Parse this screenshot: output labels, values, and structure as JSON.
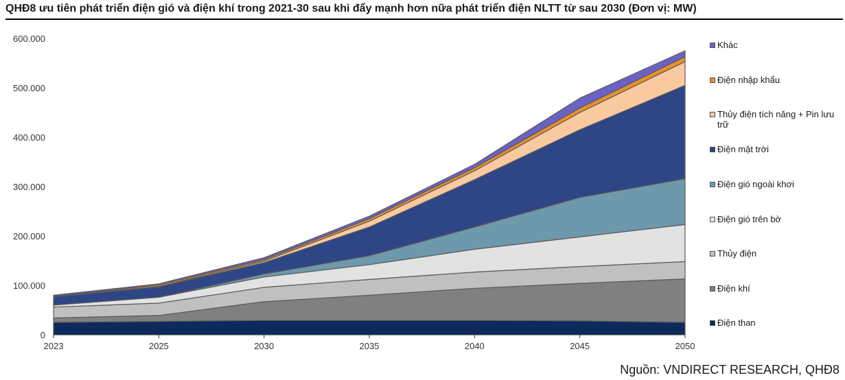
{
  "title": "QHĐ8 ưu tiên phát triển điện gió và điện khí trong 2021-30 sau khi đẩy mạnh hơn nữa phát triển điện NLTT từ sau 2030 (Đơn vị: MW)",
  "source": "Nguồn: VNDIRECT RESEARCH, QHĐ8",
  "chart_data": {
    "type": "area",
    "stacked": true,
    "x": [
      "2023",
      "2025",
      "2030",
      "2035",
      "2040",
      "2045",
      "2050"
    ],
    "ylim": [
      0,
      600000
    ],
    "yticks": [
      "0",
      "100.000",
      "200.000",
      "300.000",
      "400.000",
      "500.000",
      "600.000"
    ],
    "ytick_values": [
      0,
      100000,
      200000,
      300000,
      400000,
      500000,
      600000
    ],
    "legend_position": "right",
    "grid": false,
    "series": [
      {
        "name": "Điện than",
        "color": "#0d2a5c",
        "values": [
          25000,
          27000,
          29000,
          29000,
          29000,
          28000,
          25000
        ]
      },
      {
        "name": "Điện khí",
        "color": "#808080",
        "values": [
          9000,
          12000,
          38000,
          51000,
          65000,
          76000,
          88000
        ]
      },
      {
        "name": "Thủy điện",
        "color": "#c0c0c0",
        "values": [
          22000,
          25000,
          29000,
          32000,
          33000,
          34000,
          35000
        ]
      },
      {
        "name": "Điện gió trên bờ",
        "color": "#e2e2e2",
        "values": [
          4000,
          12000,
          21000,
          30000,
          46000,
          60000,
          75000
        ]
      },
      {
        "name": "Điện gió ngoài khơi",
        "color": "#6e98ac",
        "values": [
          0,
          0,
          6000,
          18000,
          45000,
          80000,
          93000
        ]
      },
      {
        "name": "Điện mặt trời",
        "color": "#2e4686",
        "values": [
          17000,
          21000,
          23000,
          58000,
          96000,
          137000,
          189000
        ]
      },
      {
        "name": "Thủy điện tích năng  + Pin lưu trữ",
        "color": "#f9c9a0",
        "values": [
          0,
          1000,
          3000,
          12000,
          18000,
          35000,
          48000
        ]
      },
      {
        "name": "Điện nhập khẩu",
        "color": "#e8902b",
        "values": [
          1000,
          3000,
          3000,
          5000,
          6000,
          9000,
          10000
        ]
      },
      {
        "name": "Khác",
        "color": "#6a62c4",
        "values": [
          2000,
          2000,
          4000,
          5000,
          7000,
          20000,
          12000
        ]
      }
    ]
  }
}
